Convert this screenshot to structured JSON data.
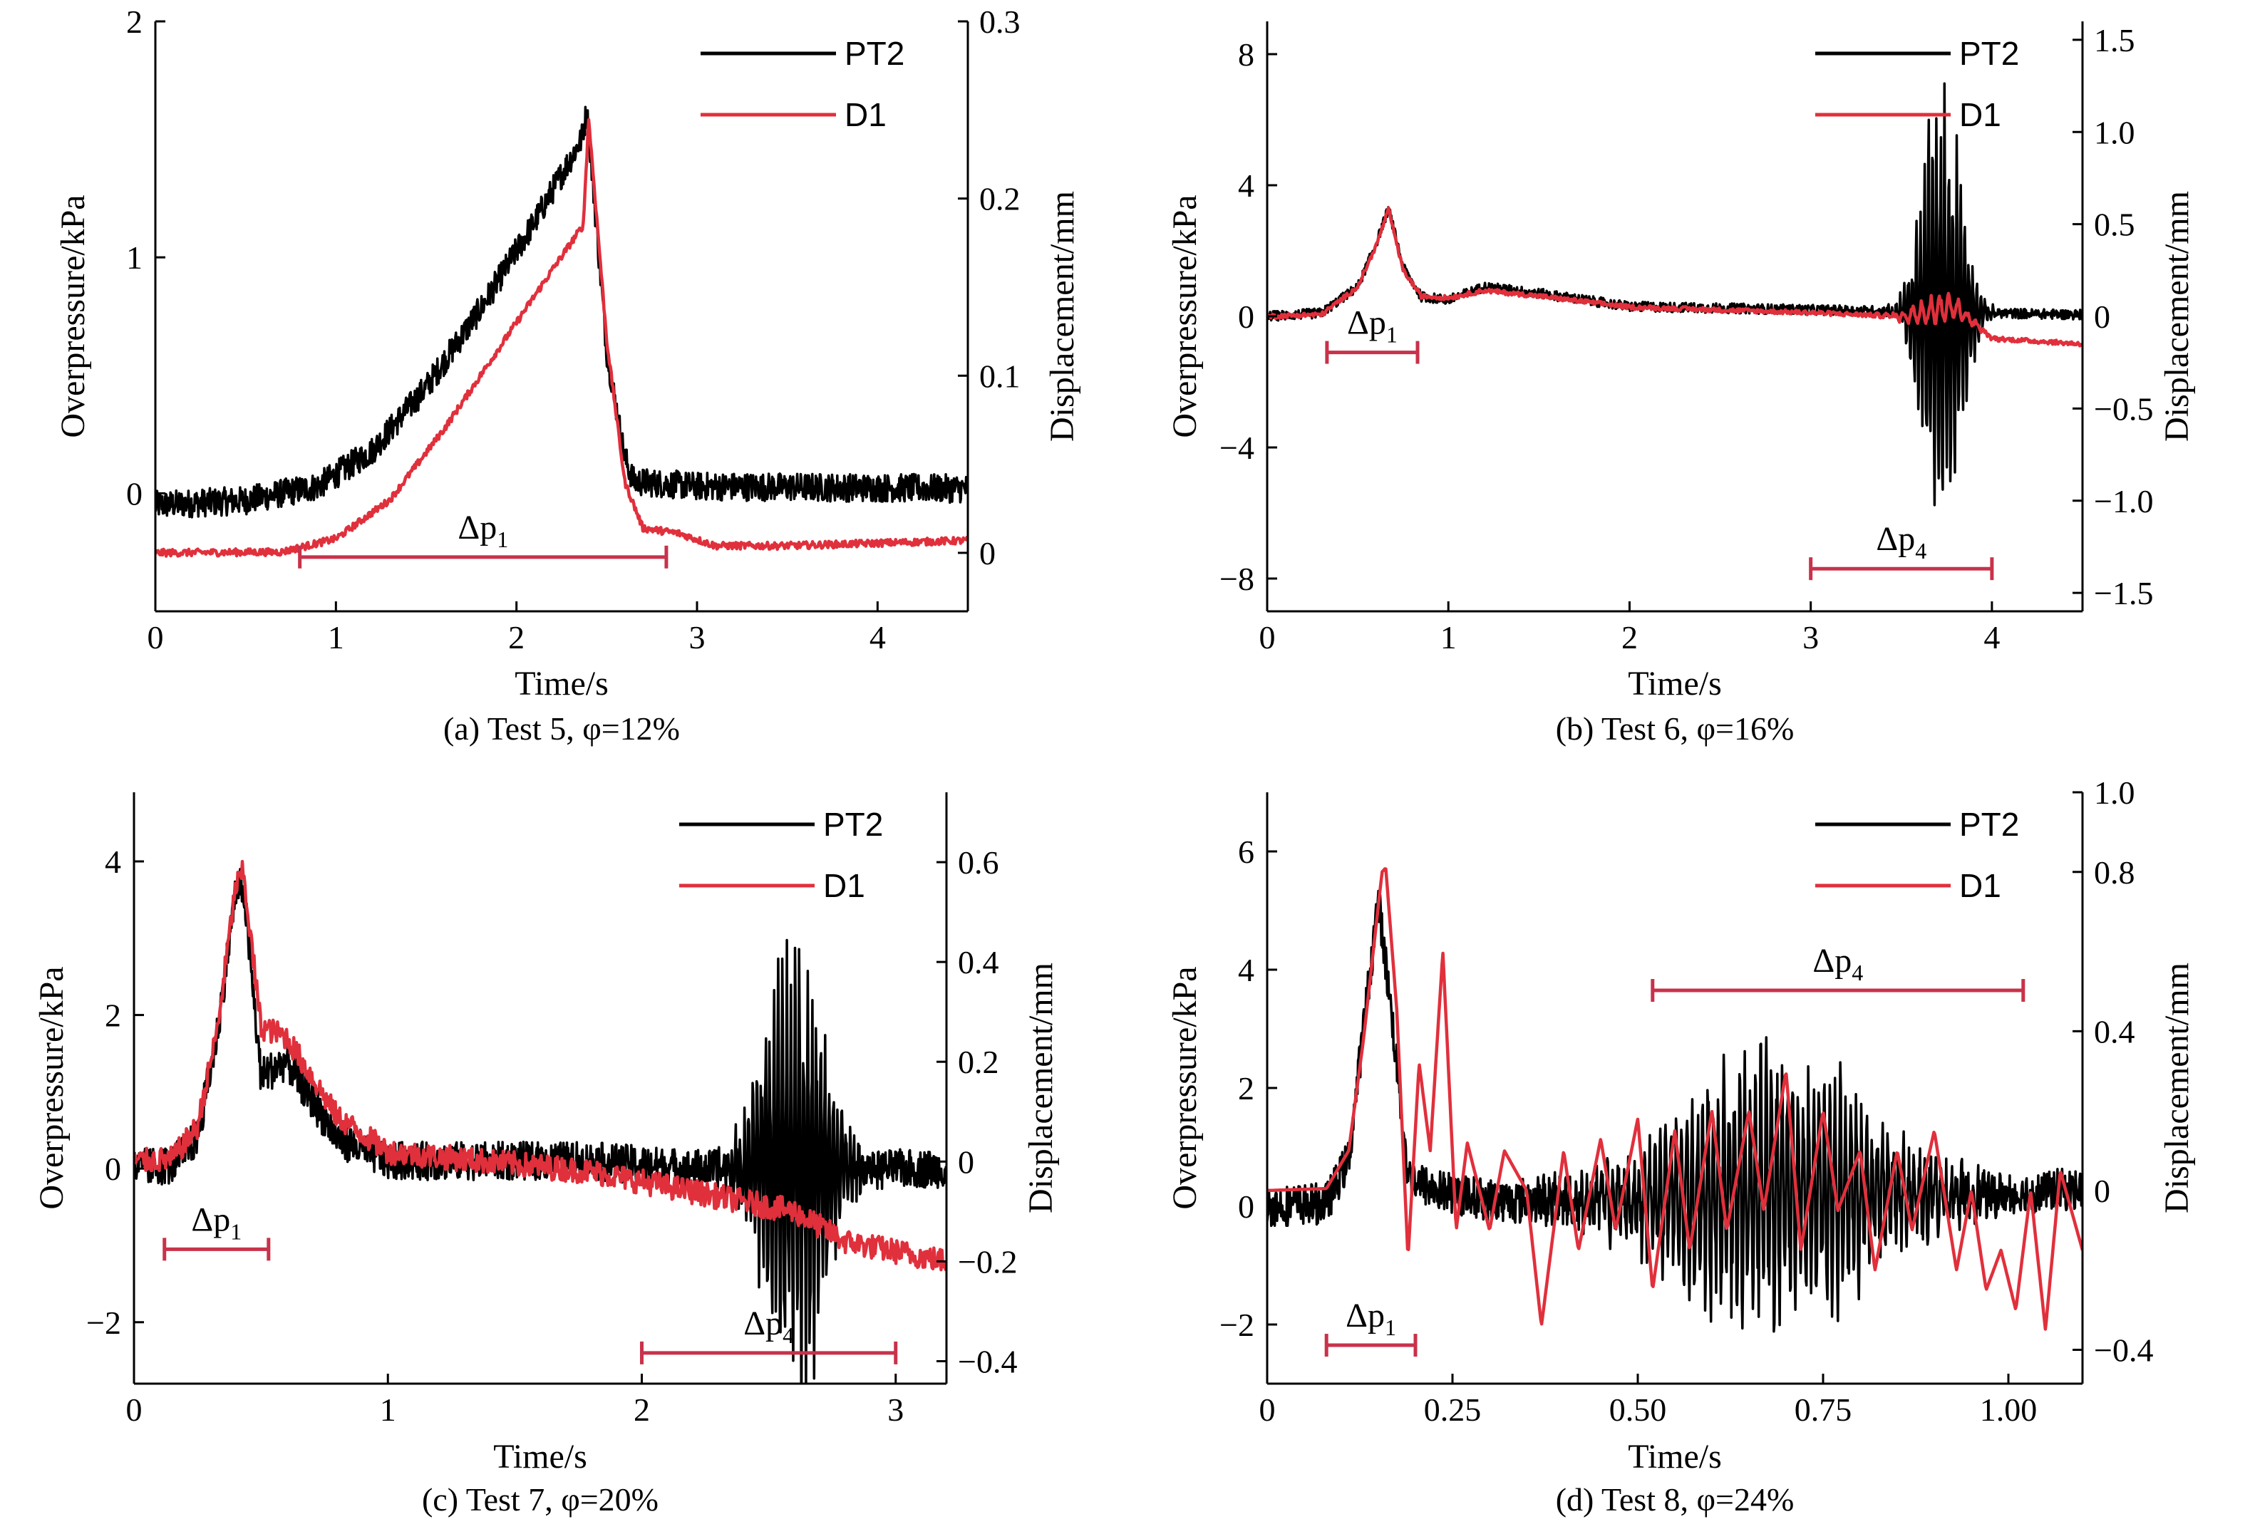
{
  "colors": {
    "pt2": "#000000",
    "d1": "#e0303c",
    "bracket": "#c8324a"
  },
  "chart_data": [
    {
      "type": "line",
      "caption": "(a) Test 5, φ=12%",
      "xlabel": "Time/s",
      "ylabel": "Overpressure/kPa",
      "y2label": "Displacement/mm",
      "xlim": [
        0,
        4.5
      ],
      "ylim": [
        -0.5,
        2
      ],
      "y2lim": [
        -0.033,
        0.3
      ],
      "xticks": [
        "0",
        "1",
        "2",
        "3",
        "4"
      ],
      "yticks": [
        "0",
        "1",
        "2"
      ],
      "y2ticks": [
        "0",
        "0.1",
        "0.2",
        "0.3"
      ],
      "legend": [
        "PT2",
        "D1"
      ],
      "legend_position": "top-right",
      "series": [
        {
          "name": "PT2",
          "axis": "left",
          "noise": 0.06,
          "burst": null,
          "x": [
            0,
            0.5,
            0.9,
            1.2,
            1.5,
            1.8,
            2.1,
            2.36,
            2.39,
            2.5,
            2.6,
            2.65,
            3.0,
            4.5
          ],
          "y": [
            -0.05,
            -0.03,
            0.03,
            0.18,
            0.45,
            0.78,
            1.15,
            1.5,
            1.62,
            0.6,
            0.15,
            0.05,
            0.03,
            0.02
          ]
        },
        {
          "name": "D1",
          "axis": "right",
          "noise": 0.002,
          "burst": null,
          "x": [
            0,
            0.7,
            1.0,
            1.3,
            1.6,
            1.9,
            2.2,
            2.37,
            2.4,
            2.5,
            2.6,
            2.7,
            2.9,
            3.1,
            3.5,
            4.5
          ],
          "y": [
            0,
            0.0005,
            0.008,
            0.03,
            0.07,
            0.115,
            0.16,
            0.185,
            0.245,
            0.12,
            0.04,
            0.014,
            0.011,
            0.004,
            0.004,
            0.007
          ]
        }
      ],
      "annotations": [
        {
          "label": "Δp",
          "subscript": "1",
          "x0": 0.8,
          "x1": 2.83,
          "y": -0.27
        }
      ]
    },
    {
      "type": "line",
      "caption": "(b) Test 6, φ=16%",
      "xlabel": "Time/s",
      "ylabel": "Overpressure/kPa",
      "y2label": "Displacement/mm",
      "xlim": [
        0,
        4.5
      ],
      "ylim": [
        -9,
        9
      ],
      "y2lim": [
        -1.6,
        1.6
      ],
      "xticks": [
        "0",
        "1",
        "2",
        "3",
        "4"
      ],
      "yticks": [
        "−8",
        "−4",
        "0",
        "4",
        "8"
      ],
      "y2ticks": [
        "−1.5",
        "−1.0",
        "−0.5",
        "0",
        "0.5",
        "1.0",
        "1.5"
      ],
      "legend": [
        "PT2",
        "D1"
      ],
      "legend_position": "top-right",
      "series": [
        {
          "name": "PT2",
          "axis": "left",
          "noise": 0.15,
          "burst": {
            "center": 3.72,
            "width": 0.28,
            "amp": 8.0,
            "freq": 45
          },
          "x": [
            0,
            0.3,
            0.5,
            0.6,
            0.67,
            0.75,
            0.85,
            1.0,
            1.2,
            1.5,
            2.0,
            3.0,
            4.5
          ],
          "y": [
            0,
            0.1,
            0.9,
            2.2,
            3.3,
            1.5,
            0.6,
            0.5,
            0.9,
            0.7,
            0.3,
            0.2,
            0.05
          ]
        },
        {
          "name": "D1",
          "axis": "right",
          "noise": 0.012,
          "burst": {
            "center": 3.7,
            "width": 0.35,
            "amp": 0.1,
            "freq": 20
          },
          "x": [
            0,
            0.3,
            0.5,
            0.6,
            0.67,
            0.75,
            0.85,
            1.0,
            1.2,
            1.5,
            2.0,
            3.0,
            3.5,
            3.8,
            4.0,
            4.5
          ],
          "y": [
            0,
            0.01,
            0.16,
            0.38,
            0.58,
            0.25,
            0.11,
            0.1,
            0.14,
            0.11,
            0.05,
            0.02,
            0.0,
            0.05,
            -0.12,
            -0.15
          ]
        }
      ],
      "annotations": [
        {
          "label": "Δp",
          "subscript": "1",
          "x0": 0.33,
          "x1": 0.83,
          "y": -1.1
        },
        {
          "label": "Δp",
          "subscript": "4",
          "x0": 3.0,
          "x1": 4.0,
          "y": -7.7
        }
      ]
    },
    {
      "type": "line",
      "caption": "(c) Test 7, φ=20%",
      "xlabel": "Time/s",
      "ylabel": "Overpressure/kPa",
      "y2label": "Displacement/mm",
      "xlim": [
        0,
        3.2
      ],
      "ylim": [
        -2.8,
        4.9
      ],
      "y2lim": [
        -0.445,
        0.74
      ],
      "xticks": [
        "0",
        "1",
        "2",
        "3"
      ],
      "yticks": [
        "−2",
        "0",
        "2",
        "4"
      ],
      "y2ticks": [
        "−0.4",
        "−0.2",
        "0",
        "0.2",
        "0.4",
        "0.6"
      ],
      "legend": [
        "PT2",
        "D1"
      ],
      "legend_position": "top-right",
      "series": [
        {
          "name": "PT2",
          "axis": "left",
          "noise": 0.25,
          "burst": {
            "center": 2.6,
            "width": 0.32,
            "amp": 3.4,
            "freq": 60
          },
          "x": [
            0,
            0.15,
            0.25,
            0.33,
            0.4,
            0.43,
            0.5,
            0.6,
            0.7,
            0.8,
            1.0,
            1.3,
            1.8,
            2.2,
            2.8,
            3.2
          ],
          "y": [
            0,
            0.05,
            0.4,
            1.8,
            3.6,
            3.7,
            1.2,
            1.4,
            0.9,
            0.4,
            0.1,
            0.1,
            0.1,
            0.0,
            0.0,
            0.0
          ]
        },
        {
          "name": "D1",
          "axis": "right",
          "noise": 0.025,
          "burst": null,
          "x": [
            0,
            0.15,
            0.25,
            0.33,
            0.4,
            0.43,
            0.5,
            0.6,
            0.7,
            0.8,
            1.0,
            1.4,
            1.8,
            2.2,
            2.6,
            2.8,
            3.0,
            3.2
          ],
          "y": [
            0,
            0.005,
            0.07,
            0.27,
            0.55,
            0.58,
            0.27,
            0.25,
            0.17,
            0.09,
            0.02,
            0.0,
            -0.02,
            -0.06,
            -0.1,
            -0.16,
            -0.18,
            -0.2
          ]
        }
      ],
      "annotations": [
        {
          "label": "Δp",
          "subscript": "1",
          "x0": 0.12,
          "x1": 0.53,
          "y": -1.05
        },
        {
          "label": "Δp",
          "subscript": "4",
          "x0": 2.0,
          "x1": 3.0,
          "y": -2.4
        }
      ]
    },
    {
      "type": "line",
      "caption": "(d) Test 8, φ=24%",
      "xlabel": "Time/s",
      "ylabel": "Overpressure/kPa",
      "y2label": "Displacement/mm",
      "xlim": [
        0,
        1.1
      ],
      "ylim": [
        -3,
        7
      ],
      "y2lim": [
        -0.485,
        1.0
      ],
      "xticks": [
        "0",
        "0.25",
        "0.50",
        "0.75",
        "1.00"
      ],
      "yticks": [
        "−2",
        "0",
        "2",
        "4",
        "6"
      ],
      "y2ticks": [
        "−0.4",
        "0",
        "0.4",
        "0.8",
        "1.0"
      ],
      "legend": [
        "PT2",
        "D1"
      ],
      "legend_position": "top-right",
      "series": [
        {
          "name": "PT2",
          "axis": "left",
          "noise": 0.35,
          "burst": {
            "center": 0.68,
            "width": 0.36,
            "amp": 2.6,
            "freq": 140
          },
          "x": [
            0,
            0.08,
            0.11,
            0.13,
            0.15,
            0.17,
            0.19,
            0.22,
            0.3,
            0.5,
            0.7,
            0.9,
            1.0,
            1.1
          ],
          "y": [
            0,
            0.05,
            0.8,
            3.0,
            5.2,
            3.0,
            0.5,
            0.3,
            0.1,
            0.1,
            0.3,
            0.2,
            0.2,
            0.3
          ]
        },
        {
          "name": "D1",
          "axis": "right",
          "noise": 0.0,
          "burst": null,
          "x": [
            0,
            0.08,
            0.11,
            0.13,
            0.155,
            0.16,
            0.175,
            0.19,
            0.205,
            0.22,
            0.237,
            0.255,
            0.27,
            0.3,
            0.32,
            0.35,
            0.37,
            0.4,
            0.42,
            0.45,
            0.47,
            0.5,
            0.52,
            0.55,
            0.57,
            0.6,
            0.62,
            0.65,
            0.67,
            0.7,
            0.72,
            0.75,
            0.77,
            0.8,
            0.82,
            0.85,
            0.87,
            0.9,
            0.93,
            0.95,
            0.97,
            0.99,
            1.01,
            1.03,
            1.05,
            1.07,
            1.1
          ],
          "y": [
            0,
            0.005,
            0.1,
            0.38,
            0.8,
            0.81,
            0.45,
            -0.17,
            0.32,
            0.1,
            0.6,
            -0.1,
            0.12,
            -0.1,
            0.1,
            0.0,
            -0.34,
            0.1,
            -0.15,
            0.13,
            -0.1,
            0.18,
            -0.25,
            0.15,
            -0.15,
            0.2,
            -0.1,
            0.2,
            -0.05,
            0.3,
            -0.15,
            0.2,
            -0.05,
            0.1,
            -0.2,
            0.1,
            -0.1,
            0.15,
            -0.2,
            0.0,
            -0.25,
            -0.15,
            -0.3,
            0.0,
            -0.35,
            0.05,
            -0.15
          ]
        }
      ],
      "annotations": [
        {
          "label": "Δp",
          "subscript": "1",
          "x0": 0.08,
          "x1": 0.2,
          "y": -2.35
        },
        {
          "label": "Δp",
          "subscript": "4",
          "x0": 0.52,
          "x1": 1.02,
          "y": 3.65
        }
      ]
    }
  ]
}
